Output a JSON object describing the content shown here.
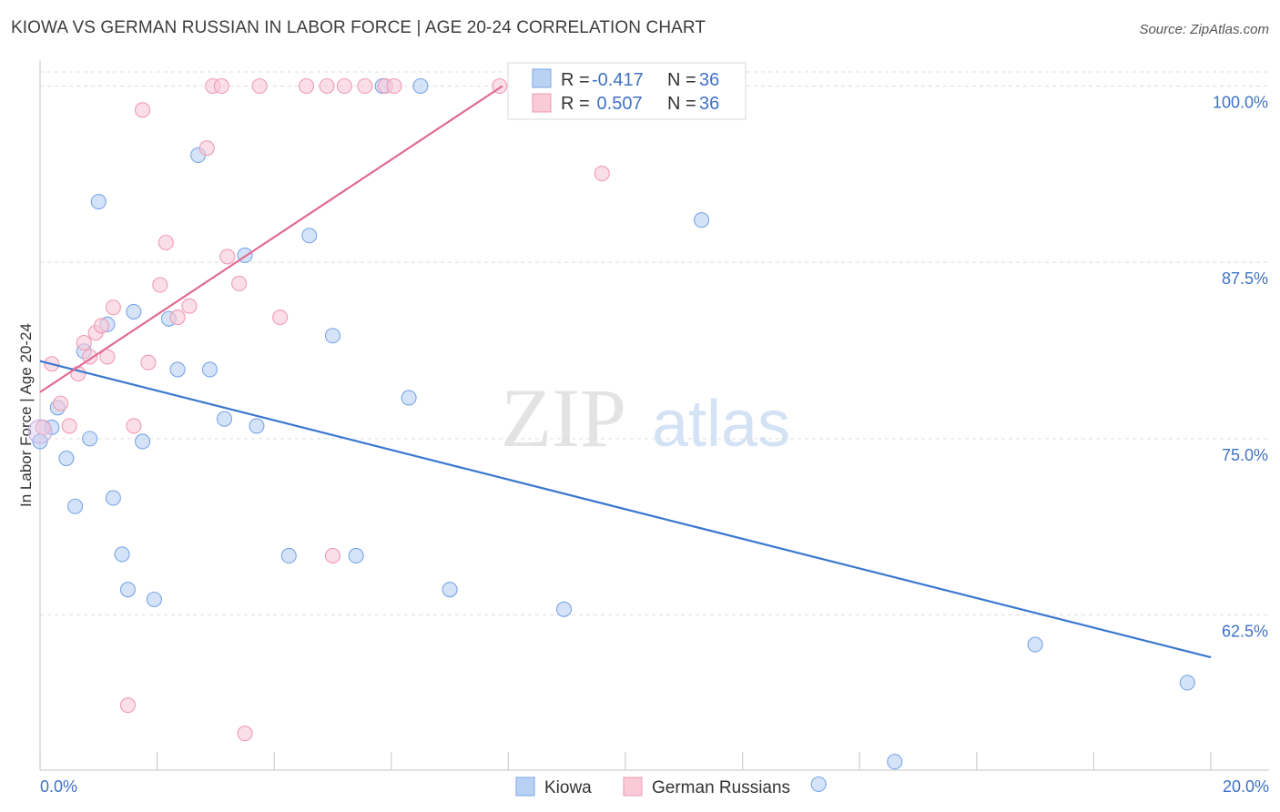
{
  "title": "KIOWA VS GERMAN RUSSIAN IN LABOR FORCE | AGE 20-24 CORRELATION CHART",
  "source": "Source: ZipAtlas.com",
  "watermark": {
    "zip": "ZIP",
    "atlas": "atlas"
  },
  "chart_data": {
    "type": "scatter",
    "xlabel": "",
    "ylabel": "In Labor Force | Age 20-24",
    "xlim": [
      0,
      20
    ],
    "ylim": [
      51.5,
      101
    ],
    "x_tick_labels": [
      "0.0%",
      "20.0%"
    ],
    "y_ticks": [
      100,
      87.5,
      75,
      62.5
    ],
    "y_tick_labels": [
      "100.0%",
      "87.5%",
      "75.0%",
      "62.5%"
    ],
    "grid": true,
    "legend": {
      "position": "top-center",
      "rows": [
        {
          "r_label": "R = ",
          "r": "-0.417",
          "n_label": "N = ",
          "n": "36"
        },
        {
          "r_label": "R = ",
          "r": " 0.507",
          "n_label": "N = ",
          "n": "36"
        }
      ]
    },
    "series": [
      {
        "name": "Kiowa",
        "color": "#7aa6e6",
        "fill": "#b9d1f3",
        "line_color": "#3a78d0",
        "trend": {
          "x": [
            0.0,
            20.0
          ],
          "y": [
            80.5,
            59.5
          ]
        },
        "points": [
          {
            "x": 0.0,
            "y": 74.8
          },
          {
            "x": 0.2,
            "y": 75.8
          },
          {
            "x": 0.3,
            "y": 77.2
          },
          {
            "x": 0.45,
            "y": 73.6
          },
          {
            "x": 0.6,
            "y": 70.2
          },
          {
            "x": 0.75,
            "y": 81.2
          },
          {
            "x": 0.85,
            "y": 75.0
          },
          {
            "x": 1.0,
            "y": 91.8
          },
          {
            "x": 1.15,
            "y": 83.1
          },
          {
            "x": 1.25,
            "y": 70.8
          },
          {
            "x": 1.4,
            "y": 66.8
          },
          {
            "x": 1.5,
            "y": 64.3
          },
          {
            "x": 1.6,
            "y": 84.0
          },
          {
            "x": 1.75,
            "y": 74.8
          },
          {
            "x": 1.95,
            "y": 63.6
          },
          {
            "x": 2.2,
            "y": 83.5
          },
          {
            "x": 2.35,
            "y": 79.9
          },
          {
            "x": 2.7,
            "y": 95.1
          },
          {
            "x": 2.9,
            "y": 79.9
          },
          {
            "x": 3.15,
            "y": 76.4
          },
          {
            "x": 3.5,
            "y": 88.0
          },
          {
            "x": 3.7,
            "y": 75.9
          },
          {
            "x": 4.25,
            "y": 66.7
          },
          {
            "x": 4.6,
            "y": 89.4
          },
          {
            "x": 5.0,
            "y": 82.3
          },
          {
            "x": 5.4,
            "y": 66.7
          },
          {
            "x": 5.85,
            "y": 100.0
          },
          {
            "x": 6.3,
            "y": 77.9
          },
          {
            "x": 6.5,
            "y": 100.0
          },
          {
            "x": 7.0,
            "y": 64.3
          },
          {
            "x": 8.95,
            "y": 62.9
          },
          {
            "x": 11.3,
            "y": 90.5
          },
          {
            "x": 13.3,
            "y": 50.5
          },
          {
            "x": 14.6,
            "y": 52.1
          },
          {
            "x": 17.0,
            "y": 60.4
          },
          {
            "x": 19.6,
            "y": 57.7
          }
        ]
      },
      {
        "name": "German Russians",
        "color": "#f09bb3",
        "fill": "#f9cad8",
        "line_color": "#e06b90",
        "trend": {
          "x": [
            0.0,
            7.9
          ],
          "y": [
            78.3,
            100.0
          ]
        },
        "points": [
          {
            "x": 0.05,
            "y": 75.8
          },
          {
            "x": 0.2,
            "y": 80.3
          },
          {
            "x": 0.35,
            "y": 77.5
          },
          {
            "x": 0.5,
            "y": 75.9
          },
          {
            "x": 0.65,
            "y": 79.6
          },
          {
            "x": 0.75,
            "y": 81.8
          },
          {
            "x": 0.85,
            "y": 80.8
          },
          {
            "x": 0.95,
            "y": 82.5
          },
          {
            "x": 1.05,
            "y": 83.0
          },
          {
            "x": 1.15,
            "y": 80.8
          },
          {
            "x": 1.25,
            "y": 84.3
          },
          {
            "x": 1.5,
            "y": 56.1
          },
          {
            "x": 1.6,
            "y": 75.9
          },
          {
            "x": 1.75,
            "y": 98.3
          },
          {
            "x": 1.85,
            "y": 80.4
          },
          {
            "x": 2.05,
            "y": 85.9
          },
          {
            "x": 2.15,
            "y": 88.9
          },
          {
            "x": 2.35,
            "y": 83.6
          },
          {
            "x": 2.55,
            "y": 84.4
          },
          {
            "x": 2.85,
            "y": 95.6
          },
          {
            "x": 2.95,
            "y": 100.0
          },
          {
            "x": 3.1,
            "y": 100.0
          },
          {
            "x": 3.2,
            "y": 87.9
          },
          {
            "x": 3.4,
            "y": 86.0
          },
          {
            "x": 3.5,
            "y": 54.1
          },
          {
            "x": 3.75,
            "y": 100.0
          },
          {
            "x": 4.1,
            "y": 83.6
          },
          {
            "x": 4.55,
            "y": 100.0
          },
          {
            "x": 4.9,
            "y": 100.0
          },
          {
            "x": 5.0,
            "y": 66.7
          },
          {
            "x": 5.2,
            "y": 100.0
          },
          {
            "x": 5.55,
            "y": 100.0
          },
          {
            "x": 5.9,
            "y": 100.0
          },
          {
            "x": 6.05,
            "y": 100.0
          },
          {
            "x": 7.85,
            "y": 100.0
          },
          {
            "x": 9.6,
            "y": 93.8
          }
        ]
      }
    ]
  }
}
